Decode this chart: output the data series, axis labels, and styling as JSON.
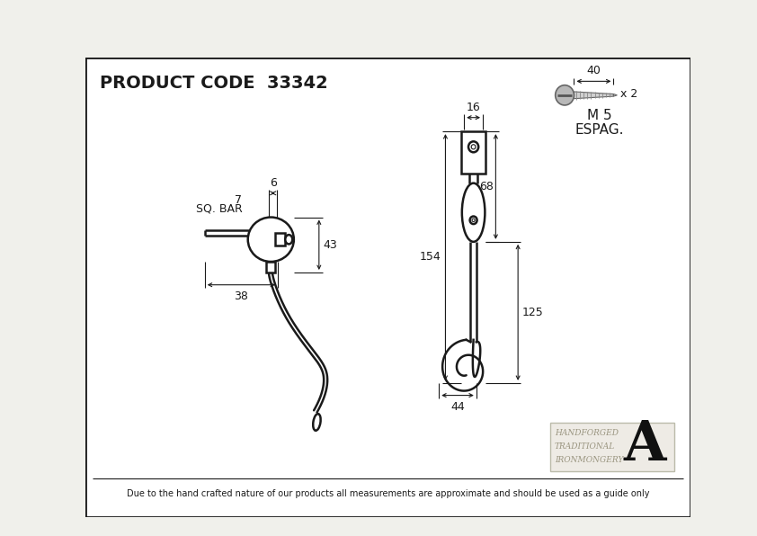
{
  "title": "PRODUCT CODE  33342",
  "footer": "Due to the hand crafted nature of our products all measurements are approximate and should be used as a guide only",
  "brand_lines": [
    "HANDFORGED",
    "TRADITIONAL",
    "IRONMONGERY"
  ],
  "screw_label": "x 2",
  "screw_size": "M 5",
  "screw_espag": "ESPAG.",
  "dim_screw_length": "40",
  "dim_6": "6",
  "dim_7": "7",
  "dim_sq_bar": "SQ. BAR",
  "dim_43": "43",
  "dim_38": "38",
  "dim_16": "16",
  "dim_68": "68",
  "dim_154": "154",
  "dim_125": "125",
  "dim_44": "44",
  "line_color": "#1a1a1a",
  "bg_color": "#f0f0eb",
  "inner_bg": "#ffffff",
  "title_fontsize": 13,
  "dim_fontsize": 9
}
